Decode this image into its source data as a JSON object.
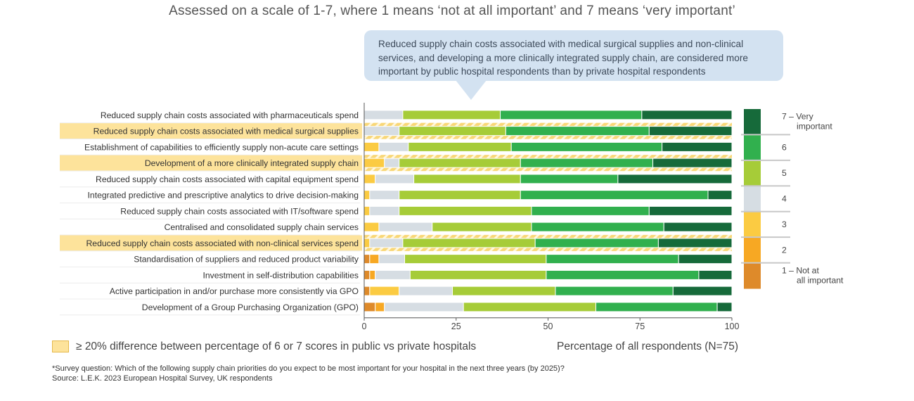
{
  "title": "Assessed on a scale of 1-7, where 1 means ‘not at all important’ and 7 means ‘very important’",
  "callout": "Reduced supply chain costs associated with medical surgical supplies and non-clinical services, and developing a more clinically integrated supply chain, are considered more important by public hospital respondents than by private hospital respondents",
  "legend_highlight": "≥ 20% difference between percentage of 6 or 7 scores in public vs private hospitals",
  "footnote": {
    "question": "*Survey question: Which of the following supply chain priorities do you expect to be most important for your hospital in the next three years (by 2025)?",
    "source": "Source: L.E.K. 2023 European Hospital Survey, UK respondents"
  },
  "colors": {
    "score_1": "#de8a2a",
    "score_2": "#f7a823",
    "score_3": "#fbcb42",
    "score_4": "#d6dde3",
    "score_5": "#a6cc38",
    "score_6": "#31b04e",
    "score_7": "#166a3a",
    "highlight": "#fde39b"
  },
  "scale_legend": {
    "labels": [
      {
        "score": 7,
        "lines": [
          "7 – Very",
          "important"
        ]
      },
      {
        "score": 6,
        "lines": [
          "6"
        ]
      },
      {
        "score": 5,
        "lines": [
          "5"
        ]
      },
      {
        "score": 4,
        "lines": [
          "4"
        ]
      },
      {
        "score": 3,
        "lines": [
          "3"
        ]
      },
      {
        "score": 2,
        "lines": [
          "2"
        ]
      },
      {
        "score": 1,
        "lines": [
          "1 – Not at",
          "all important"
        ]
      }
    ]
  },
  "chart_data": {
    "type": "bar",
    "orientation": "horizontal",
    "stacked": true,
    "xlabel": "Percentage of all respondents (N=75)",
    "xlim": [
      0,
      100
    ],
    "xticks": [
      0,
      25,
      50,
      75,
      100
    ],
    "series_names": [
      "1",
      "2",
      "3",
      "4",
      "5",
      "6",
      "7"
    ],
    "categories": [
      {
        "label": "Reduced supply chain costs associated with pharmaceuticals spend",
        "highlight": false,
        "values": [
          0,
          0,
          0,
          10.5,
          26.5,
          38.5,
          24.5
        ]
      },
      {
        "label": "Reduced supply chain costs associated with medical surgical supplies",
        "highlight": true,
        "values": [
          0,
          0,
          0,
          9.5,
          29,
          39,
          22.5
        ]
      },
      {
        "label": "Establishment of capabilities to efficiently supply non-acute care settings",
        "highlight": false,
        "values": [
          0,
          0,
          4,
          8,
          28,
          41,
          19
        ]
      },
      {
        "label": "Development of a more clinically integrated supply chain",
        "highlight": true,
        "values": [
          0,
          0,
          5.5,
          4,
          33,
          36,
          21.5
        ]
      },
      {
        "label": "Reduced supply chain costs associated with capital equipment spend",
        "highlight": false,
        "values": [
          0,
          0,
          3,
          10.5,
          29,
          26.5,
          31
        ]
      },
      {
        "label": "Integrated predictive and prescriptive analytics to drive decision-making",
        "highlight": false,
        "values": [
          0,
          0,
          1.5,
          8,
          33,
          51,
          6.5
        ]
      },
      {
        "label": "Reduced supply chain costs associated with IT/software spend",
        "highlight": false,
        "values": [
          0,
          0,
          1.5,
          8,
          36,
          32,
          22.5
        ]
      },
      {
        "label": "Centralised and consolidated supply chain services",
        "highlight": false,
        "values": [
          0,
          0,
          4,
          14.5,
          27,
          36,
          18.5
        ]
      },
      {
        "label": "Reduced supply chain costs associated with non-clinical services spend",
        "highlight": true,
        "values": [
          0,
          0,
          1.5,
          9,
          36,
          33.5,
          20
        ]
      },
      {
        "label": "Standardisation of suppliers and reduced product variability",
        "highlight": false,
        "values": [
          1.5,
          2.5,
          0,
          7,
          38.5,
          36,
          14.5
        ]
      },
      {
        "label": "Investment in self-distribution capabilities",
        "highlight": false,
        "values": [
          1.5,
          1.5,
          0,
          9.5,
          37,
          41.5,
          9
        ]
      },
      {
        "label": "Active participation in and/or purchase more consistently via GPO",
        "highlight": false,
        "values": [
          1.5,
          0,
          8,
          14.5,
          28,
          32,
          16
        ]
      },
      {
        "label": "Development of a Group Purchasing Organization (GPO)",
        "highlight": false,
        "values": [
          3,
          2.5,
          0,
          21.5,
          36,
          33,
          4
        ]
      }
    ]
  }
}
